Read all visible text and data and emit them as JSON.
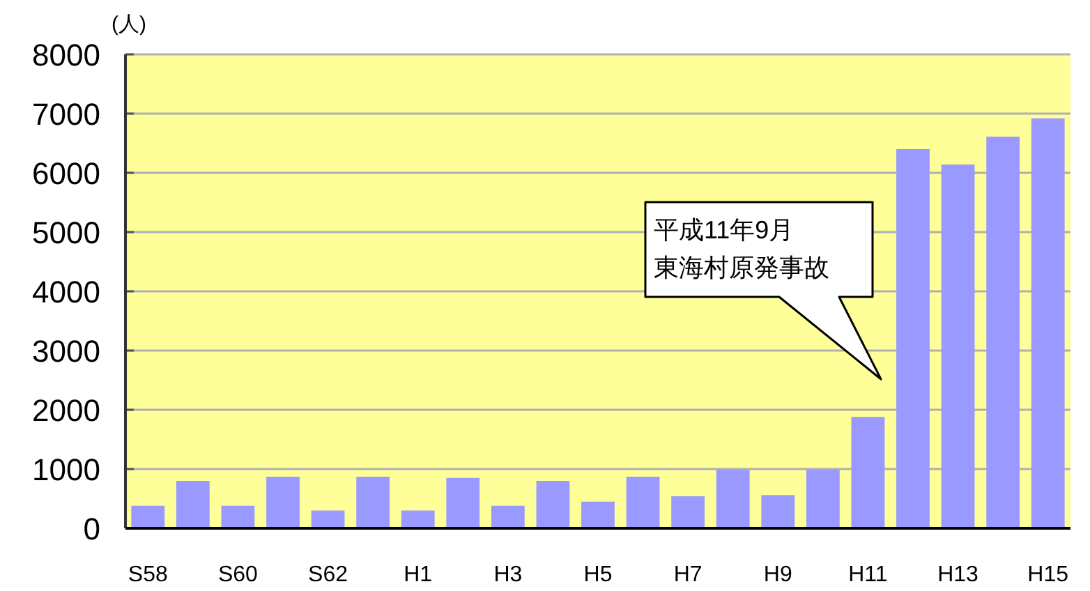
{
  "chart_data": {
    "type": "bar",
    "ylabel": "(人)",
    "categories": [
      "S58",
      null,
      "S60",
      null,
      "S62",
      null,
      "H1",
      null,
      "H3",
      null,
      "H5",
      null,
      "H7",
      null,
      "H9",
      null,
      "H11",
      null,
      "H13",
      null,
      "H15"
    ],
    "values": [
      380,
      800,
      380,
      870,
      300,
      870,
      300,
      850,
      380,
      800,
      450,
      870,
      540,
      990,
      560,
      990,
      1880,
      6400,
      6140,
      6610,
      6920
    ],
    "color": "#9999ff",
    "ylim": [
      0,
      8000
    ],
    "yticks": [
      0,
      1000,
      2000,
      3000,
      4000,
      5000,
      6000,
      7000,
      8000
    ],
    "grid": "y",
    "annotations": [
      "平成11年9月",
      "東海村原発事故"
    ]
  }
}
